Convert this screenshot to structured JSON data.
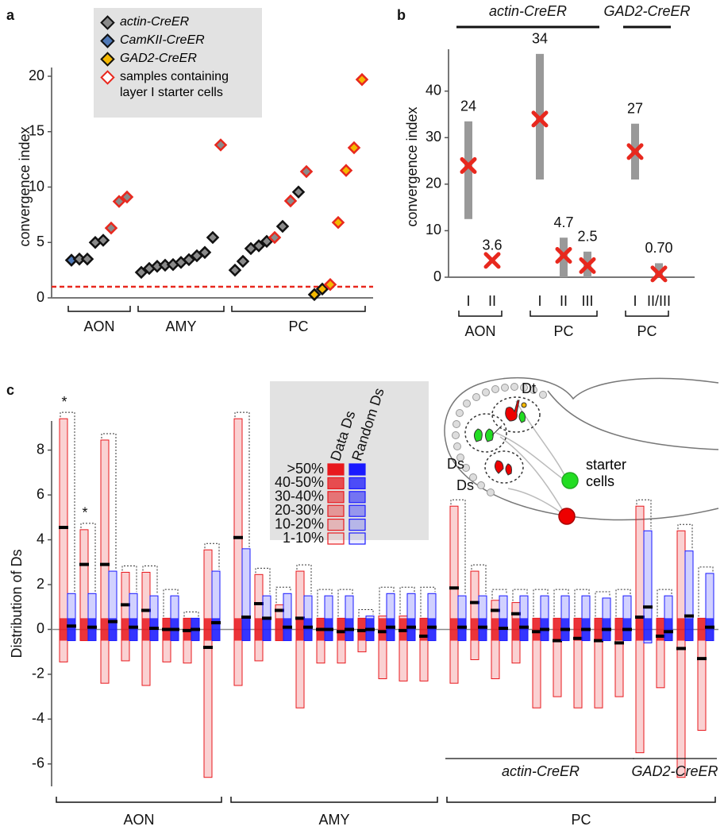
{
  "chart_data": [
    {
      "type": "scatter",
      "panel": "a",
      "ylabel": "convergence index",
      "ylim": [
        0,
        20
      ],
      "yticks": [
        0,
        5,
        10,
        15,
        20
      ],
      "series": [
        {
          "name": "actin-CreER",
          "color": "#8a8a8a"
        },
        {
          "name": "CamKII-CreER",
          "color": "#4f79b8"
        },
        {
          "name": "GAD2-CreER",
          "color": "#f5b800"
        }
      ],
      "layer_I": {
        "name": "samples containing layer I starter cells",
        "color": "#e8281e"
      },
      "reference_line": 1,
      "groups": [
        {
          "name": "AON",
          "points": [
            {
              "value": 3.4,
              "line": 1,
              "layer_I": false
            },
            {
              "value": 3.5,
              "line": 0,
              "layer_I": false
            },
            {
              "value": 3.5,
              "line": 0,
              "layer_I": false
            },
            {
              "value": 5.0,
              "line": 0,
              "layer_I": false
            },
            {
              "value": 5.2,
              "line": 0,
              "layer_I": false
            },
            {
              "value": 6.3,
              "line": 0,
              "layer_I": true
            },
            {
              "value": 8.7,
              "line": 0,
              "layer_I": true
            },
            {
              "value": 9.1,
              "line": 0,
              "layer_I": true
            }
          ]
        },
        {
          "name": "AMY",
          "points": [
            {
              "value": 2.3,
              "line": 0,
              "layer_I": false
            },
            {
              "value": 2.65,
              "line": 0,
              "layer_I": false
            },
            {
              "value": 2.85,
              "line": 0,
              "layer_I": false
            },
            {
              "value": 2.95,
              "line": 0,
              "layer_I": false
            },
            {
              "value": 3.0,
              "line": 0,
              "layer_I": false
            },
            {
              "value": 3.2,
              "line": 0,
              "layer_I": false
            },
            {
              "value": 3.45,
              "line": 0,
              "layer_I": false
            },
            {
              "value": 3.8,
              "line": 0,
              "layer_I": false
            },
            {
              "value": 4.1,
              "line": 0,
              "layer_I": false
            },
            {
              "value": 5.45,
              "line": 0,
              "layer_I": false
            },
            {
              "value": 13.8,
              "line": 0,
              "layer_I": true
            }
          ]
        },
        {
          "name": "PC",
          "points": [
            {
              "value": 2.5,
              "line": 0,
              "layer_I": false
            },
            {
              "value": 3.3,
              "line": 0,
              "layer_I": false
            },
            {
              "value": 4.45,
              "line": 0,
              "layer_I": false
            },
            {
              "value": 4.7,
              "line": 0,
              "layer_I": false
            },
            {
              "value": 5.1,
              "line": 0,
              "layer_I": false
            },
            {
              "value": 5.45,
              "line": 0,
              "layer_I": true
            },
            {
              "value": 6.45,
              "line": 0,
              "layer_I": false
            },
            {
              "value": 8.75,
              "line": 0,
              "layer_I": true
            },
            {
              "value": 9.55,
              "line": 0,
              "layer_I": false
            },
            {
              "value": 11.4,
              "line": 0,
              "layer_I": true
            },
            {
              "value": 0.3,
              "line": 2,
              "layer_I": false
            },
            {
              "value": 0.8,
              "line": 2,
              "layer_I": false
            },
            {
              "value": 1.2,
              "line": 2,
              "layer_I": true
            },
            {
              "value": 6.8,
              "line": 2,
              "layer_I": true
            },
            {
              "value": 11.5,
              "line": 2,
              "layer_I": true
            },
            {
              "value": 13.55,
              "line": 2,
              "layer_I": true
            },
            {
              "value": 19.7,
              "line": 2,
              "layer_I": true
            }
          ]
        }
      ]
    },
    {
      "type": "range",
      "panel": "b",
      "ylabel": "convergence index",
      "ylim": [
        0,
        49
      ],
      "yticks": [
        0,
        10,
        20,
        30,
        40
      ],
      "range_color": "#999999",
      "marker_color": "#e8281e",
      "genotypes": [
        {
          "name": "actin-CreER",
          "groups": [
            {
              "name": "AON",
              "categories": [
                "I",
                "II"
              ],
              "values": [
                24,
                3.6
              ],
              "lows": [
                12.5,
                null
              ],
              "highs": [
                33.5,
                null
              ]
            },
            {
              "name": "PC",
              "categories": [
                "I",
                "II",
                "III"
              ],
              "values": [
                34,
                4.7,
                2.5
              ],
              "lows": [
                21,
                0,
                0
              ],
              "highs": [
                48,
                8.5,
                5.5
              ]
            }
          ]
        },
        {
          "name": "GAD2-CreER",
          "groups": [
            {
              "name": "PC",
              "categories": [
                "I",
                "II/III"
              ],
              "values": [
                27,
                0.7
              ],
              "value_labels": [
                "27",
                "0.70"
              ],
              "lows": [
                21,
                0
              ],
              "highs": [
                33,
                3
              ]
            }
          ]
        }
      ]
    },
    {
      "type": "box",
      "panel": "c",
      "ylabel": "Distribution of Ds",
      "ylim": [
        -7,
        9.3
      ],
      "yticks": [
        -6,
        -4,
        -2,
        0,
        2,
        4,
        6,
        8
      ],
      "data_color": "#e8191e",
      "random_color": "#1a1aff",
      "legend": {
        "headers": [
          "Data Ds",
          "Random Ds"
        ],
        "levels": [
          ">50%",
          "40-50%",
          "30-40%",
          "20-30%",
          "10-20%",
          "1-10%"
        ]
      },
      "groups": [
        {
          "name": "AON",
          "samples": [
            {
              "data": {
                "low": -1.45,
                "median": 4.55,
                "high": 9.4
              },
              "random": {
                "low": -0.5,
                "median": 0.15,
                "high": 1.6
              },
              "mark": "*"
            },
            {
              "data": {
                "low": -0.5,
                "median": 2.9,
                "high": 4.45
              },
              "random": {
                "low": -0.5,
                "median": 0.1,
                "high": 1.6
              },
              "mark": "*"
            },
            {
              "data": {
                "low": -2.4,
                "median": 2.9,
                "high": 8.45
              },
              "random": {
                "low": -0.5,
                "median": 0.35,
                "high": 2.6
              }
            },
            {
              "data": {
                "low": -1.4,
                "median": 1.1,
                "high": 2.55
              },
              "random": {
                "low": -0.5,
                "median": 0.1,
                "high": 1.6
              }
            },
            {
              "data": {
                "low": -2.5,
                "median": 0.85,
                "high": 2.55
              },
              "random": {
                "low": -0.5,
                "median": 0.05,
                "high": 1.5
              }
            },
            {
              "data": {
                "low": -1.45,
                "median": 0,
                "high": 0.5
              },
              "random": {
                "low": -0.5,
                "median": 0,
                "high": 1.5
              }
            },
            {
              "data": {
                "low": -1.5,
                "median": -0.05,
                "high": 0.5
              },
              "random": {
                "low": -0.5,
                "median": 0,
                "high": 0.5
              }
            },
            {
              "data": {
                "low": -6.6,
                "median": -0.8,
                "high": 3.55
              },
              "random": {
                "low": -0.5,
                "median": 0.3,
                "high": 2.6
              }
            }
          ]
        },
        {
          "name": "AMY",
          "samples": [
            {
              "data": {
                "low": -2.5,
                "median": 4.1,
                "high": 9.4
              },
              "random": {
                "low": -0.5,
                "median": 0.55,
                "high": 3.6
              }
            },
            {
              "data": {
                "low": -1.4,
                "median": 1.15,
                "high": 2.45
              },
              "random": {
                "low": -0.5,
                "median": 0.5,
                "high": 1.5
              }
            },
            {
              "data": {
                "low": -0.5,
                "median": 0.85,
                "high": 1.1
              },
              "random": {
                "low": -0.5,
                "median": 0.1,
                "high": 1.6
              }
            },
            {
              "data": {
                "low": -3.5,
                "median": 0.5,
                "high": 2.6
              },
              "random": {
                "low": -0.5,
                "median": 0.1,
                "high": 1.5
              }
            },
            {
              "data": {
                "low": -1.5,
                "median": 0,
                "high": 0.5
              },
              "random": {
                "low": -0.5,
                "median": 0,
                "high": 1.5
              }
            },
            {
              "data": {
                "low": -1.5,
                "median": -0.1,
                "high": 0.5
              },
              "random": {
                "low": -0.5,
                "median": 0,
                "high": 1.5
              }
            },
            {
              "data": {
                "low": -1.0,
                "median": -0.05,
                "high": 0.5
              },
              "random": {
                "low": -0.5,
                "median": 0,
                "high": 0.6
              }
            },
            {
              "data": {
                "low": -2.2,
                "median": -0.1,
                "high": 0.6
              },
              "random": {
                "low": -0.5,
                "median": 0.1,
                "high": 1.6
              }
            },
            {
              "data": {
                "low": -2.3,
                "median": -0.05,
                "high": 0.6
              },
              "random": {
                "low": -0.5,
                "median": 0.1,
                "high": 1.6
              }
            },
            {
              "data": {
                "low": -2.3,
                "median": -0.3,
                "high": 0.5
              },
              "random": {
                "low": -0.5,
                "median": 0.1,
                "high": 1.6
              }
            }
          ]
        },
        {
          "name": "PC",
          "subgroups": [
            {
              "name": "actin-CreER",
              "samples": [
                {
                  "data": {
                    "low": -2.4,
                    "median": 1.85,
                    "high": 5.5
                  },
                  "random": {
                    "low": -0.5,
                    "median": 0.1,
                    "high": 1.5
                  }
                },
                {
                  "data": {
                    "low": -1.35,
                    "median": 1.2,
                    "high": 2.6
                  },
                  "random": {
                    "low": -0.5,
                    "median": 0.1,
                    "high": 1.5
                  }
                },
                {
                  "data": {
                    "low": -2.2,
                    "median": 0.85,
                    "high": 1.3
                  },
                  "random": {
                    "low": -0.5,
                    "median": 0.05,
                    "high": 1.5
                  }
                },
                {
                  "data": {
                    "low": -1.5,
                    "median": 0.7,
                    "high": 1.2
                  },
                  "random": {
                    "low": -0.5,
                    "median": 0.1,
                    "high": 1.5
                  }
                },
                {
                  "data": {
                    "low": -3.5,
                    "median": -0.1,
                    "high": 0.5
                  },
                  "random": {
                    "low": -0.5,
                    "median": 0,
                    "high": 1.5
                  }
                },
                {
                  "data": {
                    "low": -3.0,
                    "median": -0.5,
                    "high": 0.5
                  },
                  "random": {
                    "low": -0.5,
                    "median": 0,
                    "high": 1.5
                  }
                },
                {
                  "data": {
                    "low": -3.5,
                    "median": -0.4,
                    "high": 0.5
                  },
                  "random": {
                    "low": -0.5,
                    "median": 0,
                    "high": 1.5
                  }
                },
                {
                  "data": {
                    "low": -3.5,
                    "median": -0.5,
                    "high": 0.5
                  },
                  "random": {
                    "low": -0.5,
                    "median": 0,
                    "high": 1.4
                  }
                },
                {
                  "data": {
                    "low": -3.0,
                    "median": -0.6,
                    "high": 0.5
                  },
                  "random": {
                    "low": -0.5,
                    "median": 0,
                    "high": 1.5
                  }
                }
              ]
            },
            {
              "name": "GAD2-CreER",
              "samples": [
                {
                  "data": {
                    "low": -5.5,
                    "median": 0.55,
                    "high": 5.5
                  },
                  "random": {
                    "low": -0.6,
                    "median": 1.0,
                    "high": 4.4
                  }
                },
                {
                  "data": {
                    "low": -2.6,
                    "median": -0.3,
                    "high": 0.5
                  },
                  "random": {
                    "low": -0.5,
                    "median": -0.1,
                    "high": 1.5
                  }
                },
                {
                  "data": {
                    "low": -6.6,
                    "median": -0.85,
                    "high": 4.4
                  },
                  "random": {
                    "low": -0.5,
                    "median": 0.6,
                    "high": 3.5
                  }
                },
                {
                  "data": {
                    "low": -4.5,
                    "median": -1.3,
                    "high": 0.5
                  },
                  "random": {
                    "low": -0.5,
                    "median": 0.1,
                    "high": 2.5
                  }
                }
              ]
            }
          ]
        }
      ]
    }
  ],
  "diagram": {
    "labels": [
      "Dt",
      "Ds",
      "Ds",
      "starter cells"
    ]
  }
}
